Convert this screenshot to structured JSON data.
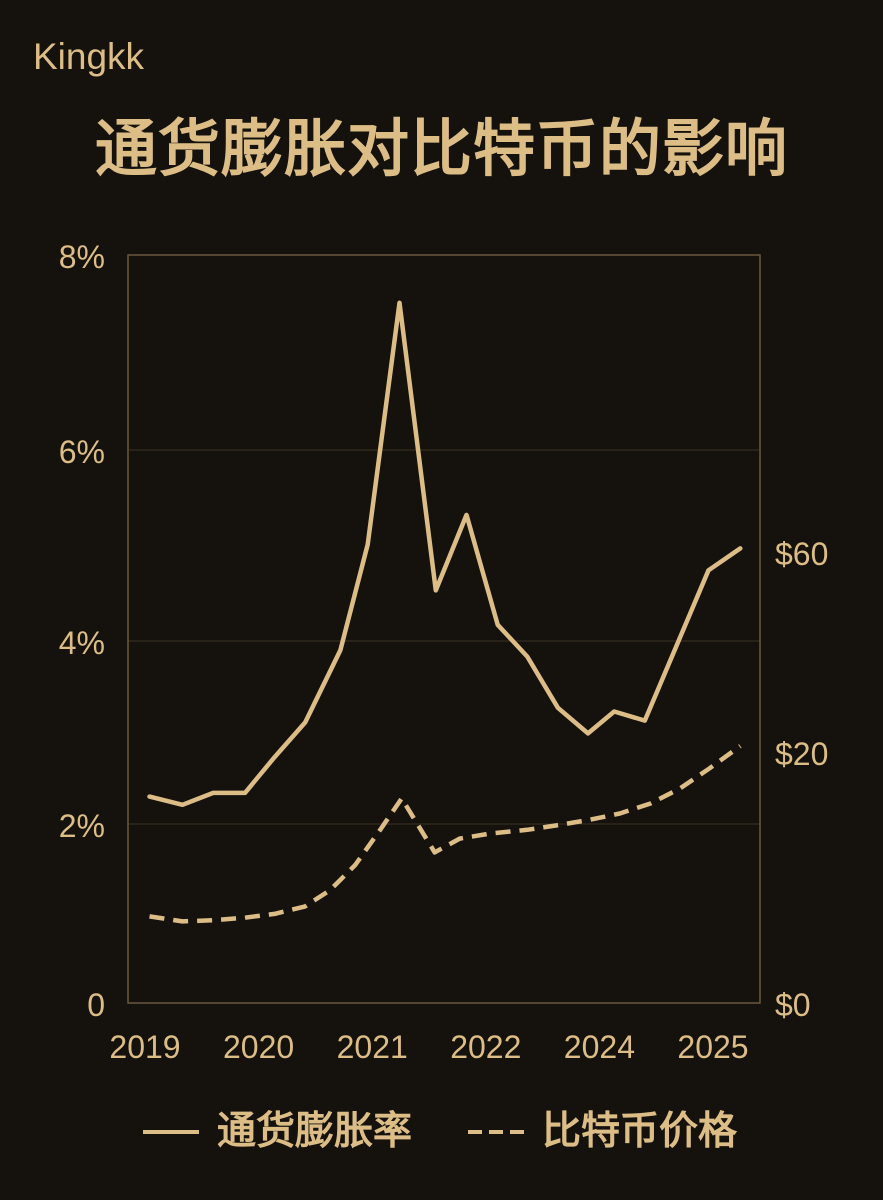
{
  "brand": "Kingkk",
  "colors": {
    "background": "#15120e",
    "accent": "#dcbd86",
    "grid": "#3a3124",
    "frame": "#6a583c"
  },
  "chart_data": {
    "type": "line",
    "title": "通货膨胀对比特币的影响",
    "x_ticks": [
      2019,
      2020,
      2021,
      2022,
      2024,
      2025
    ],
    "y_left": {
      "ticks": [
        0,
        2,
        4,
        6,
        8
      ],
      "tick_labels": [
        "0",
        "2%",
        "4%",
        "6%",
        "8%"
      ],
      "ylim": [
        0,
        8
      ]
    },
    "y_right": {
      "ticks": [
        0,
        20,
        60
      ],
      "tick_labels": [
        "$0",
        "$20",
        "$60"
      ]
    },
    "grid": true,
    "legend": "bottom",
    "series": [
      {
        "name": "通货膨胀率",
        "axis": "left",
        "line_style": "solid",
        "x": [
          2019.04,
          2019.33,
          2019.6,
          2019.88,
          2020.14,
          2020.41,
          2020.72,
          2020.96,
          2021.24,
          2021.56,
          2021.83,
          2022.21,
          2022.73,
          2023.27,
          2023.8,
          2024.13,
          2024.4,
          2024.96,
          2025.24
        ],
        "y": [
          2.3,
          2.21,
          2.34,
          2.34,
          2.73,
          3.11,
          3.9,
          5.01,
          7.51,
          4.53,
          5.32,
          4.17,
          3.83,
          3.27,
          2.99,
          3.23,
          3.13,
          4.74,
          4.97
        ]
      },
      {
        "name": "比特币价格",
        "axis": "right",
        "line_style": "dashed",
        "x": [
          2019.04,
          2019.33,
          2019.6,
          2019.88,
          2020.14,
          2020.41,
          2020.63,
          2020.85,
          2021.07,
          2021.26,
          2021.55,
          2021.77,
          2022.07,
          2022.73,
          2023.31,
          2023.83,
          2024.18,
          2024.45,
          2024.71,
          2024.97,
          2025.24
        ],
        "y": [
          6.9,
          6.5,
          6.6,
          6.8,
          7.1,
          7.7,
          9.0,
          11.0,
          13.8,
          16.3,
          12.0,
          13.1,
          13.5,
          13.8,
          14.2,
          14.6,
          15.1,
          15.9,
          17.1,
          18.7,
          21.2
        ]
      }
    ]
  }
}
